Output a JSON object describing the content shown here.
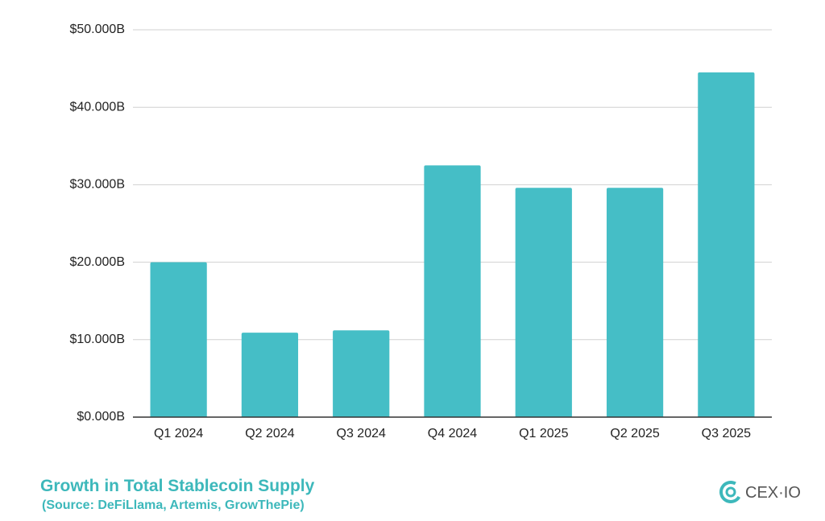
{
  "chart_data": {
    "type": "bar",
    "title": "Growth in Total Stablecoin Supply",
    "subtitle": "(Source: DeFiLlama, Artemis, GrowThePie)",
    "brand": "CEX·IO",
    "categories": [
      "Q1 2024",
      "Q2 2024",
      "Q3 2024",
      "Q4 2024",
      "Q1 2025",
      "Q2 2025",
      "Q3 2025"
    ],
    "values": [
      20,
      10.9,
      11.2,
      32.5,
      29.6,
      29.6,
      44.5
    ],
    "color": "#45bec6",
    "ylim": [
      0,
      50
    ],
    "yticks": [
      {
        "value": 0,
        "label": "$0.000B"
      },
      {
        "value": 10,
        "label": "$10.000B"
      },
      {
        "value": 20,
        "label": "$20.000B"
      },
      {
        "value": 30,
        "label": "$30.000B"
      },
      {
        "value": 40,
        "label": "$40.000B"
      },
      {
        "value": 50,
        "label": "$50.000B"
      }
    ],
    "grid": true
  }
}
